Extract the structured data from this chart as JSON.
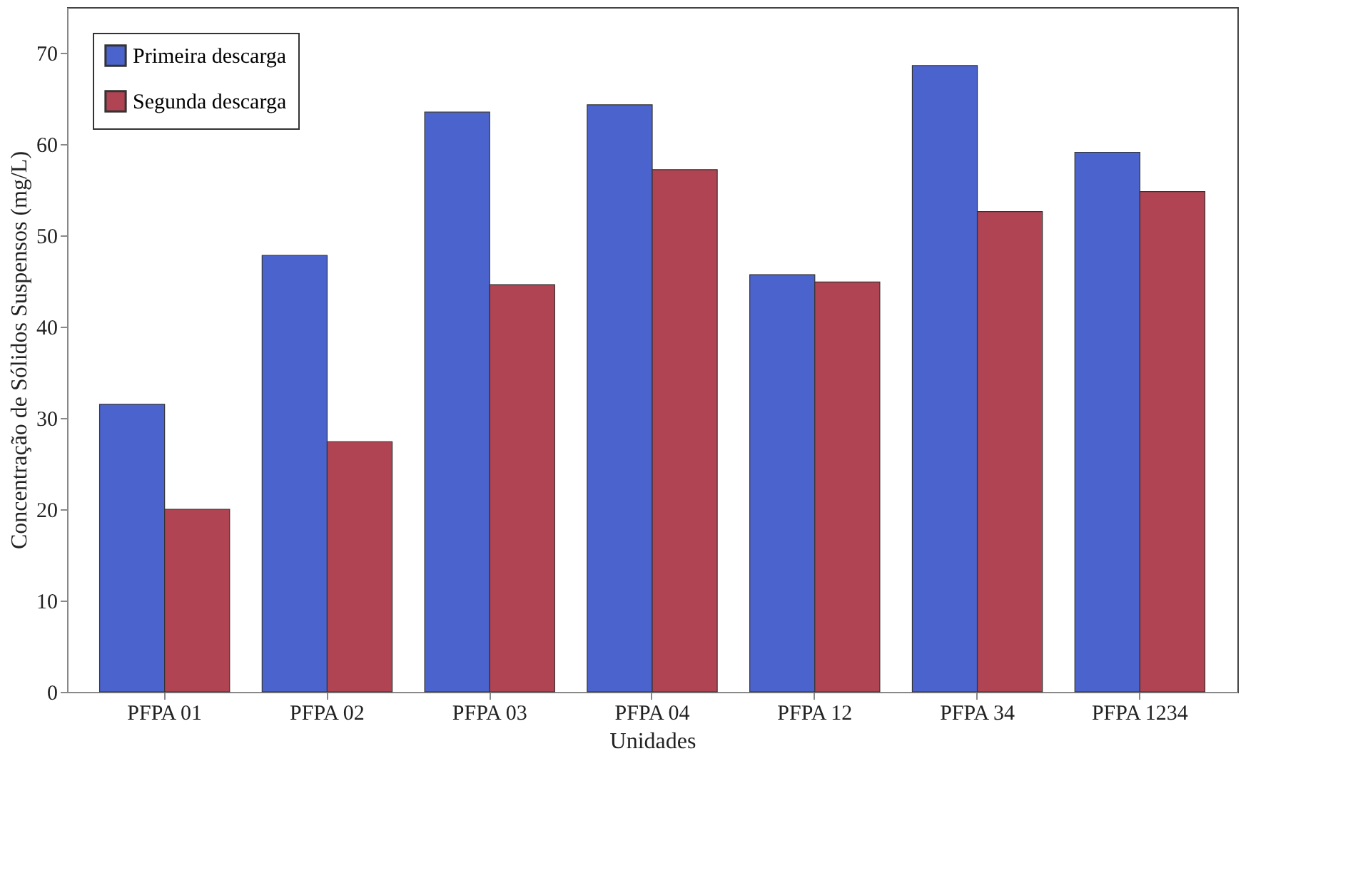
{
  "chart_data": {
    "type": "bar",
    "xlabel": "Unidades",
    "ylabel": "Concentração de Sólidos Suspensos (mg/L)",
    "categories": [
      "PFPA 01",
      "PFPA 02",
      "PFPA 03",
      "PFPA 04",
      "PFPA 12",
      "PFPA 34",
      "PFPA 1234"
    ],
    "series": [
      {
        "name": "Primeira descarga",
        "color": "#4b63cc",
        "values": [
          31.5,
          47.8,
          63.5,
          64.3,
          45.7,
          68.6,
          59.1
        ]
      },
      {
        "name": "Segunda descarga",
        "color": "#b04452",
        "values": [
          20,
          27.4,
          44.6,
          57.2,
          44.9,
          52.6,
          54.8
        ]
      }
    ],
    "ylim": [
      0,
      75
    ],
    "yticks": [
      0,
      10,
      20,
      30,
      40,
      50,
      60,
      70
    ],
    "grid": false,
    "legend": "top left"
  }
}
